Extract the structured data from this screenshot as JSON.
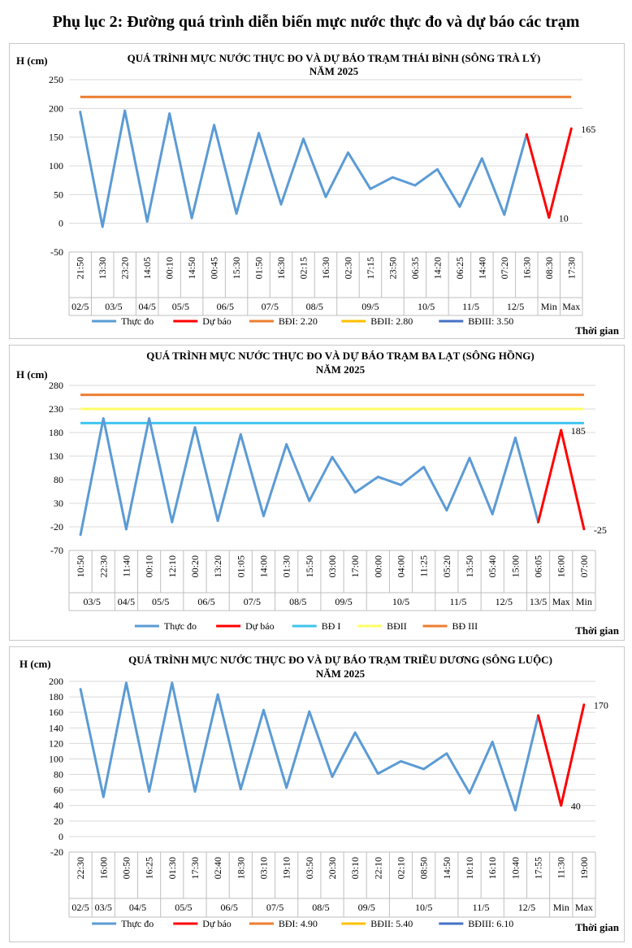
{
  "page": {
    "title": "Phụ lục 2: Đường quá trình diễn biến mực nước thực đo và dự báo các trạm"
  },
  "chart_data": [
    {
      "type": "line",
      "title_line1": "QUÁ TRÌNH MỰC NƯỚC THỰC ĐO VÀ DỰ BÁO TRẠM THÁI BÌNH (SÔNG TRÀ LÝ)",
      "title_line2": "NĂM 2025",
      "ylabel": "H (cm)",
      "xlabel": "Thời gian",
      "ylim": [
        -50,
        250
      ],
      "yticks": [
        -50,
        0,
        50,
        100,
        150,
        200,
        250
      ],
      "times": [
        "21:50",
        "13:30",
        "23:20",
        "14:05",
        "00:10",
        "14:50",
        "00:45",
        "15:30",
        "01:50",
        "16:30",
        "02:15",
        "16:30",
        "02:30",
        "17:15",
        "23:50",
        "06:35",
        "14:20",
        "06:25",
        "14:40",
        "07:20",
        "16:30",
        "08:30",
        "17:30"
      ],
      "date_groups": [
        {
          "label": "02/5",
          "start": 0,
          "end": 0
        },
        {
          "label": "03/5",
          "start": 1,
          "end": 2
        },
        {
          "label": "04/5",
          "start": 3,
          "end": 3
        },
        {
          "label": "05/5",
          "start": 4,
          "end": 5
        },
        {
          "label": "06/5",
          "start": 6,
          "end": 7
        },
        {
          "label": "07/5",
          "start": 8,
          "end": 9
        },
        {
          "label": "08/5",
          "start": 10,
          "end": 11
        },
        {
          "label": "09/5",
          "start": 12,
          "end": 14
        },
        {
          "label": "10/5",
          "start": 15,
          "end": 16
        },
        {
          "label": "11/5",
          "start": 17,
          "end": 18
        },
        {
          "label": "12/5",
          "start": 19,
          "end": 20
        },
        {
          "label": "Min",
          "start": 21,
          "end": 21
        },
        {
          "label": "Max",
          "start": 22,
          "end": 22
        }
      ],
      "series": [
        {
          "name": "Thực đo",
          "color": "#5b9bd5",
          "values": [
            194,
            -6,
            196,
            3,
            191,
            9,
            171,
            17,
            157,
            33,
            147,
            46,
            123,
            60,
            80,
            66,
            94,
            29,
            113,
            15,
            155,
            null,
            null
          ]
        },
        {
          "name": "Dự báo",
          "color": "#ff0000",
          "values": [
            null,
            null,
            null,
            null,
            null,
            null,
            null,
            null,
            null,
            null,
            null,
            null,
            null,
            null,
            null,
            null,
            null,
            null,
            null,
            null,
            155,
            10,
            165
          ]
        }
      ],
      "thresholds": [
        {
          "name": "BĐI: 2.20",
          "color": "#ed7d31",
          "value": 220,
          "drawn": true
        },
        {
          "name": "BĐII: 2.80",
          "color": "#ffc000",
          "value": 280,
          "drawn": false
        },
        {
          "name": "BĐIII: 3.50",
          "color": "#4472c4",
          "value": 350,
          "drawn": false
        }
      ],
      "annotations": [
        {
          "text": "165",
          "index": 22,
          "value": 165
        },
        {
          "text": "10",
          "index": 21,
          "value": 10
        }
      ]
    },
    {
      "type": "line",
      "title_line1": "QUÁ TRÌNH MỰC NƯỚC THỰC ĐO VÀ DỰ BÁO TRẠM BA LẠT (SÔNG HỒNG)",
      "title_line2": "NĂM 2025",
      "ylabel": "H (cm)",
      "xlabel": "Thời gian",
      "ylim": [
        -70,
        280
      ],
      "yticks": [
        -70,
        -20,
        30,
        80,
        130,
        180,
        230,
        280
      ],
      "times": [
        "10:50",
        "22:30",
        "11:40",
        "00:10",
        "12:10",
        "00:20",
        "13:20",
        "01:05",
        "14:00",
        "01:30",
        "15:50",
        "03:00",
        "17:00",
        "00:00",
        "04:00",
        "11:25",
        "05:20",
        "13:50",
        "05:40",
        "15:00",
        "06:05",
        "16:00",
        "07:00"
      ],
      "date_groups": [
        {
          "label": "03/5",
          "start": 0,
          "end": 1
        },
        {
          "label": "04/5",
          "start": 2,
          "end": 2
        },
        {
          "label": "05/5",
          "start": 3,
          "end": 4
        },
        {
          "label": "06/5",
          "start": 5,
          "end": 6
        },
        {
          "label": "07/5",
          "start": 7,
          "end": 8
        },
        {
          "label": "08/5",
          "start": 9,
          "end": 10
        },
        {
          "label": "09/5",
          "start": 11,
          "end": 12
        },
        {
          "label": "10/5",
          "start": 13,
          "end": 15
        },
        {
          "label": "11/5",
          "start": 16,
          "end": 17
        },
        {
          "label": "12/5",
          "start": 18,
          "end": 19
        },
        {
          "label": "13/5",
          "start": 20,
          "end": 20
        },
        {
          "label": "Max",
          "start": 21,
          "end": 21
        },
        {
          "label": "Min",
          "start": 22,
          "end": 22
        }
      ],
      "series": [
        {
          "name": "Thực đo",
          "color": "#5b9bd5",
          "values": [
            -37,
            210,
            -25,
            210,
            -10,
            191,
            -7,
            176,
            3,
            155,
            35,
            128,
            53,
            86,
            69,
            107,
            15,
            126,
            7,
            169,
            -10,
            null,
            null
          ]
        },
        {
          "name": "Dự báo",
          "color": "#ff0000",
          "values": [
            null,
            null,
            null,
            null,
            null,
            null,
            null,
            null,
            null,
            null,
            null,
            null,
            null,
            null,
            null,
            null,
            null,
            null,
            null,
            null,
            -10,
            185,
            -25
          ]
        }
      ],
      "thresholds": [
        {
          "name": "BĐ I",
          "color": "#3fc4ef",
          "value": 200,
          "drawn": true
        },
        {
          "name": "BĐII",
          "color": "#ffff66",
          "value": 230,
          "drawn": true
        },
        {
          "name": "BĐ III",
          "color": "#ed7d31",
          "value": 260,
          "drawn": true
        }
      ],
      "annotations": [
        {
          "text": "185",
          "index": 21,
          "value": 185
        },
        {
          "text": "-25",
          "index": 22,
          "value": -25
        }
      ]
    },
    {
      "type": "line",
      "title_line1": "QUÁ TRÌNH MỰC NƯỚC THỰC ĐO VÀ DỰ BÁO TRẠM TRIỀU DƯƠNG  (SÔNG LUỘC)",
      "title_line2": "NĂM 2025",
      "ylabel": "H (cm)",
      "xlabel": "Thời gian",
      "ylim": [
        -20,
        200
      ],
      "yticks": [
        -20,
        0,
        20,
        40,
        60,
        80,
        100,
        120,
        140,
        160,
        180,
        200
      ],
      "times": [
        "22:30",
        "16:00",
        "00:50",
        "16:25",
        "01:30",
        "17:30",
        "02:40",
        "18:30",
        "03:10",
        "19:10",
        "03:50",
        "20:30",
        "03:10",
        "22:10",
        "02:10",
        "08:50",
        "14:50",
        "10:10",
        "16:10",
        "10:40",
        "17:55",
        "11:30",
        "19:00"
      ],
      "date_groups": [
        {
          "label": "02/5",
          "start": 0,
          "end": 0
        },
        {
          "label": "03/5",
          "start": 1,
          "end": 1
        },
        {
          "label": "04/5",
          "start": 2,
          "end": 3
        },
        {
          "label": "05/5",
          "start": 4,
          "end": 5
        },
        {
          "label": "06/5",
          "start": 6,
          "end": 7
        },
        {
          "label": "07/5",
          "start": 8,
          "end": 9
        },
        {
          "label": "08/5",
          "start": 10,
          "end": 11
        },
        {
          "label": "09/5",
          "start": 12,
          "end": 13
        },
        {
          "label": "10/5",
          "start": 14,
          "end": 16
        },
        {
          "label": "11/5",
          "start": 17,
          "end": 18
        },
        {
          "label": "12/5",
          "start": 19,
          "end": 20
        },
        {
          "label": "Min",
          "start": 21,
          "end": 21
        },
        {
          "label": "Max",
          "start": 22,
          "end": 22
        }
      ],
      "series": [
        {
          "name": "Thực đo",
          "color": "#5b9bd5",
          "values": [
            190,
            51,
            198,
            58,
            198,
            58,
            183,
            61,
            163,
            63,
            161,
            77,
            134,
            81,
            97,
            87,
            107,
            56,
            122,
            34,
            156,
            null,
            null
          ]
        },
        {
          "name": "Dự báo",
          "color": "#ff0000",
          "values": [
            null,
            null,
            null,
            null,
            null,
            null,
            null,
            null,
            null,
            null,
            null,
            null,
            null,
            null,
            null,
            null,
            null,
            null,
            null,
            null,
            156,
            40,
            170
          ]
        }
      ],
      "thresholds": [
        {
          "name": "BĐI: 4.90",
          "color": "#ed7d31",
          "value": 490,
          "drawn": false
        },
        {
          "name": "BĐII: 5.40",
          "color": "#ffc000",
          "value": 540,
          "drawn": false
        },
        {
          "name": "BĐIII: 6.10",
          "color": "#4472c4",
          "value": 610,
          "drawn": false
        }
      ],
      "annotations": [
        {
          "text": "170",
          "index": 22,
          "value": 170
        },
        {
          "text": "40",
          "index": 21,
          "value": 40
        }
      ]
    }
  ]
}
